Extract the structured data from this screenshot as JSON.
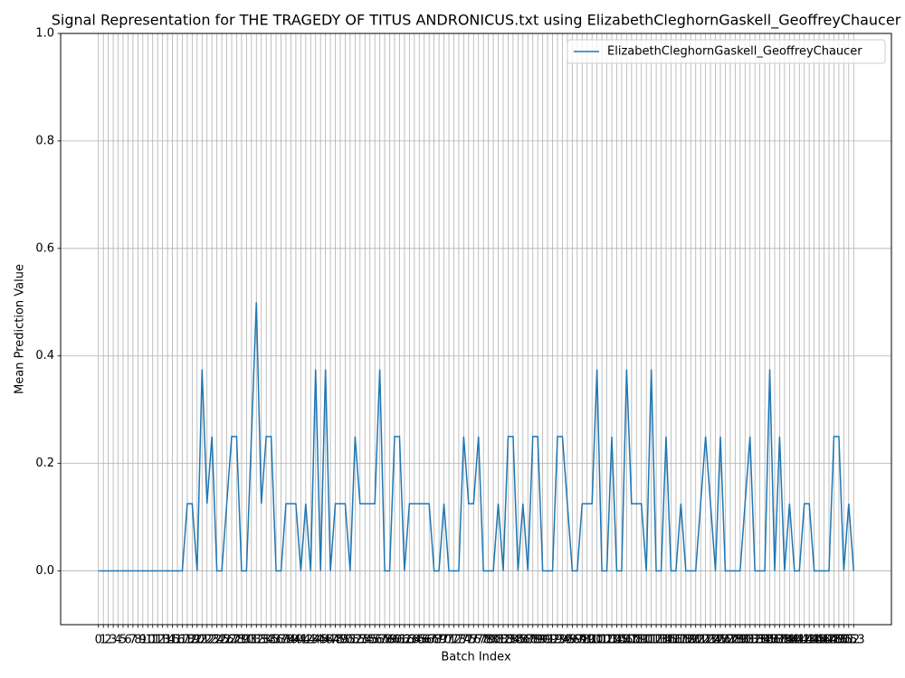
{
  "chart_data": {
    "type": "line",
    "title": "Signal Representation for THE TRAGEDY OF TITUS ANDRONICUS.txt using ElizabethCleghornGaskell_GeoffreyChaucer",
    "xlabel": "Batch Index",
    "ylabel": "Mean Prediction Value",
    "x": [
      0,
      1,
      2,
      3,
      4,
      5,
      6,
      7,
      8,
      9,
      10,
      11,
      12,
      13,
      14,
      15,
      16,
      17,
      18,
      19,
      20,
      21,
      22,
      23,
      24,
      25,
      26,
      27,
      28,
      29,
      30,
      31,
      32,
      33,
      34,
      35,
      36,
      37,
      38,
      39,
      40,
      41,
      42,
      43,
      44,
      45,
      46,
      47,
      48,
      49,
      50,
      51,
      52,
      53,
      54,
      55,
      56,
      57,
      58,
      59,
      60,
      61,
      62,
      63,
      64,
      65,
      66,
      67,
      68,
      69,
      70,
      71,
      72,
      73,
      74,
      75,
      76,
      77,
      78,
      79,
      80,
      81,
      82,
      83,
      84,
      85,
      86,
      87,
      88,
      89,
      90,
      91,
      92,
      93,
      94,
      95,
      96,
      97,
      98,
      99,
      100,
      101,
      102,
      103,
      104,
      105,
      106,
      107,
      108,
      109,
      110,
      111,
      112,
      113,
      114,
      115,
      116,
      117,
      118,
      119,
      120,
      121,
      122,
      123,
      124,
      125,
      126,
      127,
      128,
      129,
      130,
      131,
      132,
      133,
      134,
      135,
      136,
      137,
      138,
      139,
      140,
      141,
      142,
      143,
      144,
      145,
      146,
      147,
      148,
      149,
      150,
      151,
      152,
      153
    ],
    "series": [
      {
        "name": "ElizabethCleghornGaskell_GeoffreyChaucer",
        "color": "#1f77b4",
        "values": [
          0,
          0,
          0,
          0,
          0,
          0,
          0,
          0,
          0,
          0,
          0,
          0,
          0,
          0,
          0,
          0,
          0,
          0,
          0.125,
          0.125,
          0,
          0.375,
          0.125,
          0.25,
          0,
          0,
          0.125,
          0.25,
          0.25,
          0,
          0,
          0.25,
          0.5,
          0.125,
          0.25,
          0.25,
          0,
          0,
          0.125,
          0.125,
          0.125,
          0,
          0.125,
          0,
          0.375,
          0,
          0.375,
          0,
          0.125,
          0.125,
          0.125,
          0,
          0.25,
          0.125,
          0.125,
          0.125,
          0.125,
          0.375,
          0,
          0,
          0.25,
          0.25,
          0,
          0.125,
          0.125,
          0.125,
          0.125,
          0.125,
          0,
          0,
          0.125,
          0,
          0,
          0,
          0.25,
          0.125,
          0.125,
          0.25,
          0,
          0,
          0,
          0.125,
          0,
          0.25,
          0.25,
          0,
          0.125,
          0,
          0.25,
          0.25,
          0,
          0,
          0,
          0.25,
          0.25,
          0.125,
          0,
          0,
          0.125,
          0.125,
          0.125,
          0.375,
          0,
          0,
          0.25,
          0,
          0,
          0.375,
          0.125,
          0.125,
          0.125,
          0,
          0.375,
          0,
          0,
          0.25,
          0,
          0,
          0.125,
          0,
          0,
          0,
          0.125,
          0.25,
          0.125,
          0,
          0.25,
          0,
          0,
          0,
          0,
          0.125,
          0.25,
          0,
          0,
          0,
          0.375,
          0,
          0.25,
          0,
          0.125,
          0,
          0,
          0.125,
          0.125,
          0,
          0,
          0,
          0,
          0.25,
          0.25,
          0,
          0.125,
          0
        ]
      }
    ],
    "xlim": [
      -7.65,
      160.65
    ],
    "xticks": [
      0,
      1,
      2,
      3,
      4,
      5,
      6,
      7,
      8,
      9,
      10,
      11,
      12,
      13,
      14,
      15,
      16,
      17,
      18,
      19,
      20,
      21,
      22,
      23,
      24,
      25,
      26,
      27,
      28,
      29,
      30,
      31,
      32,
      33,
      34,
      35,
      36,
      37,
      38,
      39,
      40,
      41,
      42,
      43,
      44,
      45,
      46,
      47,
      48,
      49,
      50,
      51,
      52,
      53,
      54,
      55,
      56,
      57,
      58,
      59,
      60,
      61,
      62,
      63,
      64,
      65,
      66,
      67,
      68,
      69,
      70,
      71,
      72,
      73,
      74,
      75,
      76,
      77,
      78,
      79,
      80,
      81,
      82,
      83,
      84,
      85,
      86,
      87,
      88,
      89,
      90,
      91,
      92,
      93,
      94,
      95,
      96,
      97,
      98,
      99,
      100,
      101,
      102,
      103,
      104,
      105,
      106,
      107,
      108,
      109,
      110,
      111,
      112,
      113,
      114,
      115,
      116,
      117,
      118,
      119,
      120,
      121,
      122,
      123,
      124,
      125,
      126,
      127,
      128,
      129,
      130,
      131,
      132,
      133,
      134,
      135,
      136,
      137,
      138,
      139,
      140,
      141,
      142,
      143,
      144,
      145,
      146,
      147,
      148,
      149,
      150,
      151,
      152,
      153
    ],
    "ylim": [
      -0.1,
      1.0
    ],
    "yticks": [
      {
        "value": 0,
        "label": "0.0"
      },
      0.2,
      0.4,
      0.6,
      0.8,
      {
        "value": 1,
        "label": "1.0"
      }
    ],
    "grid": true,
    "legend": "upper right"
  }
}
